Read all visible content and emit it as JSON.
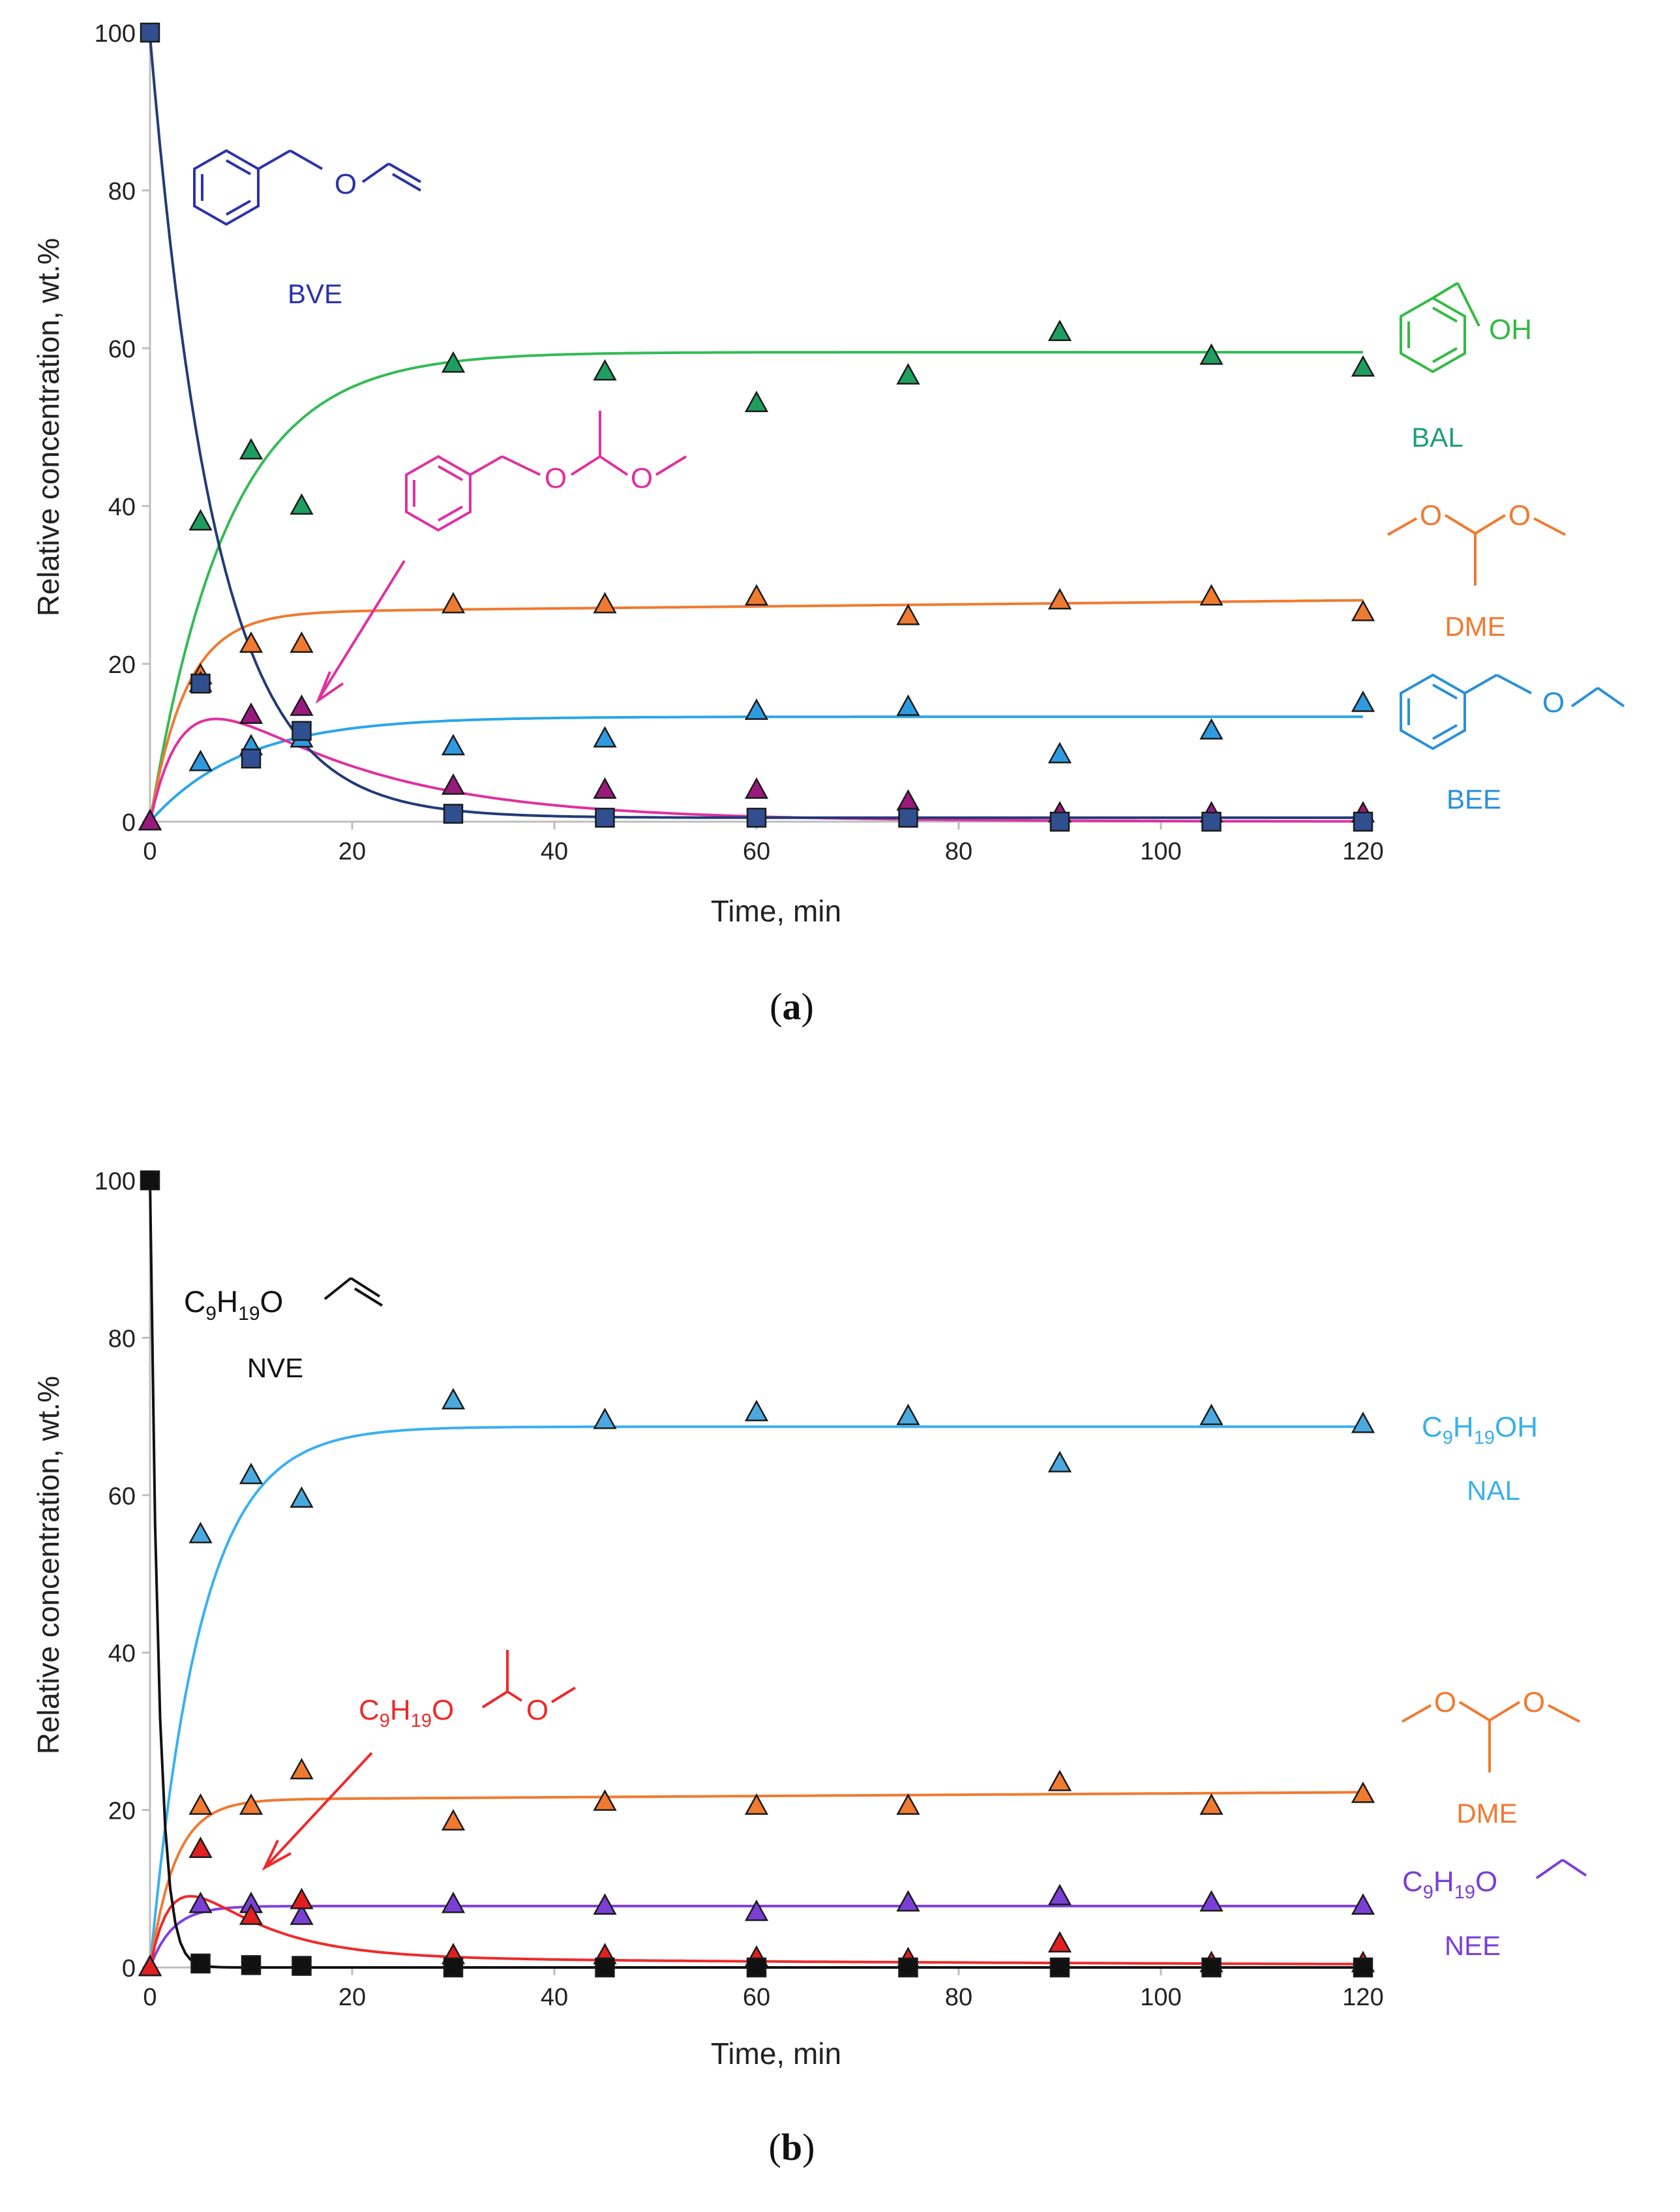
{
  "chart_data": [
    {
      "panel": "a",
      "panel_label": "(a)",
      "panel_letter": "a",
      "type": "scatter",
      "xlabel": "Time, min",
      "ylabel": "Relative concentration, wt.%",
      "xlim": [
        0,
        120
      ],
      "ylim": [
        0,
        100
      ],
      "xticks": [
        0,
        20,
        40,
        60,
        80,
        100,
        120
      ],
      "yticks": [
        0,
        20,
        40,
        60,
        80,
        100
      ],
      "series": [
        {
          "name": "BAL",
          "label": "BAL",
          "marker": "triangle",
          "color": "#1e9e60",
          "curve_color": "#33bb55",
          "x": [
            0,
            5,
            10,
            15,
            30,
            45,
            60,
            75,
            90,
            105,
            120
          ],
          "y": [
            0,
            38,
            47,
            40,
            58,
            57,
            53,
            56.5,
            62,
            59,
            57.5
          ],
          "fit": {
            "kind": "rise",
            "a": 59.5,
            "k": 0.13
          }
        },
        {
          "name": "DME",
          "label": "DME",
          "marker": "triangle",
          "color": "#f07a30",
          "curve_color": "#f07a30",
          "x": [
            0,
            5,
            10,
            15,
            30,
            45,
            60,
            75,
            90,
            105,
            120
          ],
          "y": [
            0,
            18.5,
            22.5,
            22.5,
            27.5,
            27.5,
            28.5,
            26,
            28,
            28.5,
            26.5
          ],
          "fit": {
            "kind": "rise",
            "a": 26.5,
            "k": 0.28,
            "slope": 0.013
          }
        },
        {
          "name": "BEE",
          "label": "BEE",
          "marker": "triangle",
          "color": "#2e9be0",
          "curve_color": "#2aa6e8",
          "x": [
            0,
            5,
            10,
            15,
            30,
            45,
            60,
            75,
            90,
            105,
            120
          ],
          "y": [
            0,
            7.5,
            9.5,
            10.5,
            9.5,
            10.5,
            14,
            14.5,
            8.5,
            11.5,
            15
          ],
          "fit": {
            "kind": "rise",
            "a": 13.3,
            "k": 0.11
          }
        },
        {
          "name": "intermediate",
          "label": "",
          "marker": "triangle",
          "color": "#9a1a7c",
          "curve_color": "#e030a0",
          "x": [
            0,
            5,
            10,
            15,
            30,
            45,
            60,
            75,
            90,
            105,
            120
          ],
          "y": [
            0,
            17.5,
            13.5,
            14.5,
            4.5,
            4,
            4,
            2.5,
            1,
            1,
            1
          ],
          "fit": {
            "kind": "interm",
            "a": 24,
            "k1": 0.3,
            "k2": 0.065,
            "tail": 1,
            "tailk": 0.03
          }
        },
        {
          "name": "BVE",
          "label": "BVE",
          "marker": "square",
          "color": "#2f4f8f",
          "curve_color": "#223a78",
          "x": [
            0,
            5,
            10,
            15,
            30,
            45,
            60,
            75,
            90,
            105,
            120
          ],
          "y": [
            100,
            17.5,
            8,
            11.5,
            1,
            0.5,
            0.5,
            0.5,
            0,
            0,
            0
          ],
          "fit": {
            "kind": "decay",
            "a": 100,
            "k": 0.155,
            "tail": 0.5
          }
        }
      ],
      "annotations": {
        "bve": {
          "label": "BVE",
          "color": "#2b33a8"
        },
        "bal": {
          "label": "BAL",
          "color": "#1e9e7a",
          "oh": "OH",
          "oh_color": "#33bb44"
        },
        "dme": {
          "label": "DME",
          "color": "#f07a30",
          "o1": "O",
          "o2": "O"
        },
        "bee": {
          "label": "BEE",
          "color": "#2a90d8",
          "o": "O"
        },
        "bve_o": "O",
        "interm": {
          "color": "#e030a0",
          "o1": "O",
          "o2": "O"
        }
      }
    },
    {
      "panel": "b",
      "panel_label": "(b)",
      "panel_letter": "b",
      "type": "scatter",
      "xlabel": "Time, min",
      "ylabel": "Relative concentration, wt.%",
      "xlim": [
        0,
        120
      ],
      "ylim": [
        0,
        100
      ],
      "xticks": [
        0,
        20,
        40,
        60,
        80,
        100,
        120
      ],
      "yticks": [
        0,
        20,
        40,
        60,
        80,
        100
      ],
      "series": [
        {
          "name": "NAL",
          "label": "NAL",
          "marker": "triangle",
          "color": "#4aaae0",
          "curve_color": "#3ab0f0",
          "x": [
            0,
            5,
            10,
            15,
            30,
            45,
            60,
            75,
            90,
            105,
            120
          ],
          "y": [
            0,
            55,
            62.5,
            59.5,
            72,
            69.5,
            70.5,
            70,
            64,
            70,
            69
          ],
          "fit": {
            "kind": "rise",
            "a": 68.7,
            "k": 0.2
          }
        },
        {
          "name": "DME",
          "label": "DME",
          "marker": "triangle",
          "color": "#f07a30",
          "curve_color": "#f07a30",
          "x": [
            0,
            5,
            10,
            15,
            30,
            45,
            60,
            75,
            90,
            105,
            120
          ],
          "y": [
            0,
            20.5,
            20.5,
            25,
            18.5,
            21,
            20.5,
            20.5,
            23.5,
            20.5,
            22
          ],
          "fit": {
            "kind": "rise",
            "a": 21.3,
            "k": 0.4,
            "slope": 0.008
          }
        },
        {
          "name": "NEE",
          "label": "NEE",
          "marker": "triangle",
          "color": "#7b3fd6",
          "curve_color": "#8040e0",
          "x": [
            0,
            5,
            10,
            15,
            30,
            45,
            60,
            75,
            90,
            105,
            120
          ],
          "y": [
            0,
            8,
            8,
            6.5,
            8,
            7.8,
            7,
            8.2,
            9,
            8.2,
            7.8
          ],
          "fit": {
            "kind": "rise",
            "a": 7.8,
            "k": 0.45
          }
        },
        {
          "name": "intermediate",
          "label": "",
          "marker": "triangle",
          "color": "#e02020",
          "curve_color": "#ee2a2a",
          "x": [
            0,
            5,
            10,
            15,
            30,
            45,
            60,
            75,
            90,
            105,
            120
          ],
          "y": [
            0,
            15,
            6.5,
            8.5,
            1.5,
            1.5,
            1.2,
            1,
            3,
            0.5,
            0.5
          ],
          "fit": {
            "kind": "interm",
            "a": 20,
            "k1": 0.45,
            "k2": 0.14,
            "tail": 1.4,
            "tailk": 0.01
          }
        },
        {
          "name": "NVE",
          "label": "NVE",
          "marker": "square",
          "color": "#111111",
          "curve_color": "#111111",
          "x": [
            0,
            5,
            10,
            15,
            30,
            45,
            60,
            75,
            90,
            105,
            120
          ],
          "y": [
            100,
            0.5,
            0.3,
            0.2,
            0,
            0,
            0,
            0,
            0,
            0,
            0
          ],
          "fit": {
            "kind": "decay",
            "a": 100,
            "k": 1.15,
            "tail": 0
          }
        }
      ],
      "annotations": {
        "nve": {
          "label": "NVE",
          "color": "#111111",
          "main": "C",
          "sub1": "9",
          "mid": "H",
          "sub2": "19",
          "end": "O"
        },
        "nal": {
          "label": "NAL",
          "color": "#3ab0e8",
          "main": "C",
          "sub1": "9",
          "mid": "H",
          "sub2": "19",
          "end": "OH"
        },
        "dme": {
          "label": "DME",
          "color": "#f07a30",
          "o1": "O",
          "o2": "O"
        },
        "nee": {
          "label": "NEE",
          "color": "#7b3fd6",
          "main": "C",
          "sub1": "9",
          "mid": "H",
          "sub2": "19",
          "end": "O"
        },
        "interm": {
          "color": "#ee2a2a",
          "main": "C",
          "sub1": "9",
          "mid": "H",
          "sub2": "19",
          "end": "O",
          "o2": "O"
        }
      }
    }
  ]
}
